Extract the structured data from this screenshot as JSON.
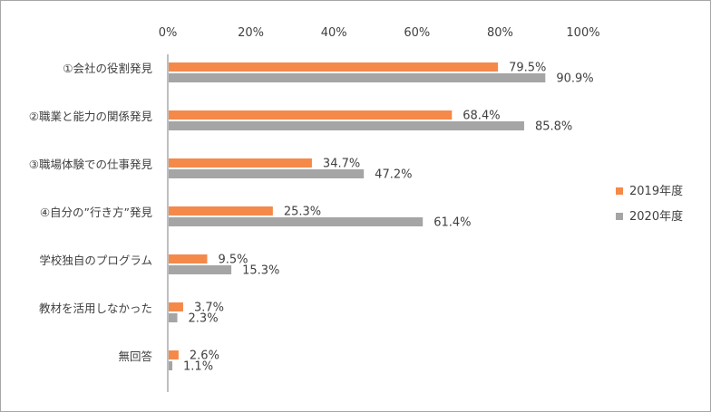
{
  "chart_data": {
    "type": "bar",
    "orientation": "horizontal",
    "categories": [
      "①会社の役割発見",
      "②職業と能力の関係発見",
      "③職場体験での仕事発見",
      "④自分の”行き方”発見",
      "学校独自のプログラム",
      "教材を活用しなかった",
      "無回答"
    ],
    "series": [
      {
        "name": "2019年度",
        "color": "#f4894a",
        "values": [
          79.5,
          68.4,
          34.7,
          25.3,
          9.5,
          3.7,
          2.6
        ]
      },
      {
        "name": "2020年度",
        "color": "#a5a5a5",
        "values": [
          90.9,
          85.8,
          47.2,
          61.4,
          15.3,
          2.3,
          1.1
        ]
      }
    ],
    "xlim": [
      0,
      100
    ],
    "x_ticks": [
      "0%",
      "20%",
      "40%",
      "60%",
      "80%",
      "100%"
    ],
    "x_axis_position": "top",
    "grid": false,
    "legend_position": "right",
    "value_format": "percent_1dp"
  }
}
